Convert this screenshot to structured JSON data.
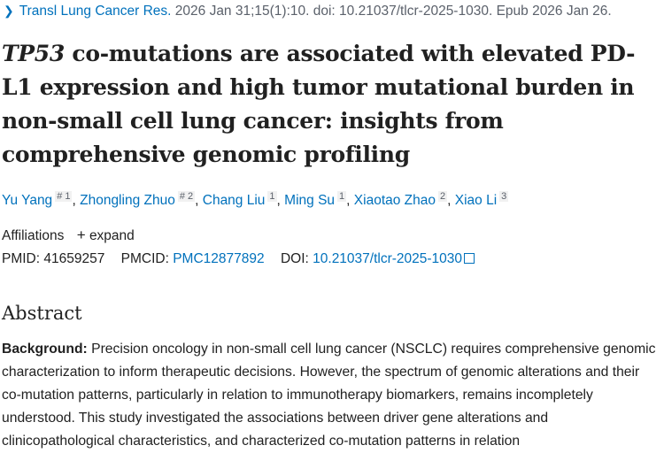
{
  "citation": {
    "journal": "Transl Lung Cancer Res.",
    "details": " 2026 Jan 31;15(1):10. doi: 10.21037/tlcr-2025-1030. Epub 2026 Jan 26."
  },
  "title": {
    "gene": "TP53",
    "rest": " co-mutations are associated with elevated PD-L1 expression and high tumor mutational burden in non-small cell lung cancer: insights from comprehensive genomic profiling"
  },
  "authors": [
    {
      "name": "Yu Yang",
      "sup": "# 1"
    },
    {
      "name": "Zhongling Zhuo",
      "sup": "# 2"
    },
    {
      "name": "Chang Liu",
      "sup": "1"
    },
    {
      "name": "Ming Su",
      "sup": "1"
    },
    {
      "name": "Xiaotao Zhao",
      "sup": "2"
    },
    {
      "name": "Xiao Li",
      "sup": "3"
    }
  ],
  "affiliations": {
    "label": "Affiliations",
    "expand": "expand"
  },
  "ids": {
    "pmid_label": "PMID:",
    "pmid": "41659257",
    "pmcid_label": "PMCID:",
    "pmcid": "PMC12877892",
    "doi_label": "DOI:",
    "doi": "10.21037/tlcr-2025-1030"
  },
  "abstract": {
    "heading": "Abstract",
    "background_label": "Background:",
    "background_text": " Precision oncology in non-small cell lung cancer (NSCLC) requires comprehensive genomic characterization to inform therapeutic decisions. However, the spectrum of genomic alterations and their co-mutation patterns, particularly in relation to immunotherapy biomarkers, remains incompletely understood. This study investigated the associations between driver gene alterations and clinicopathological characteristics, and characterized co-mutation patterns in relation"
  }
}
